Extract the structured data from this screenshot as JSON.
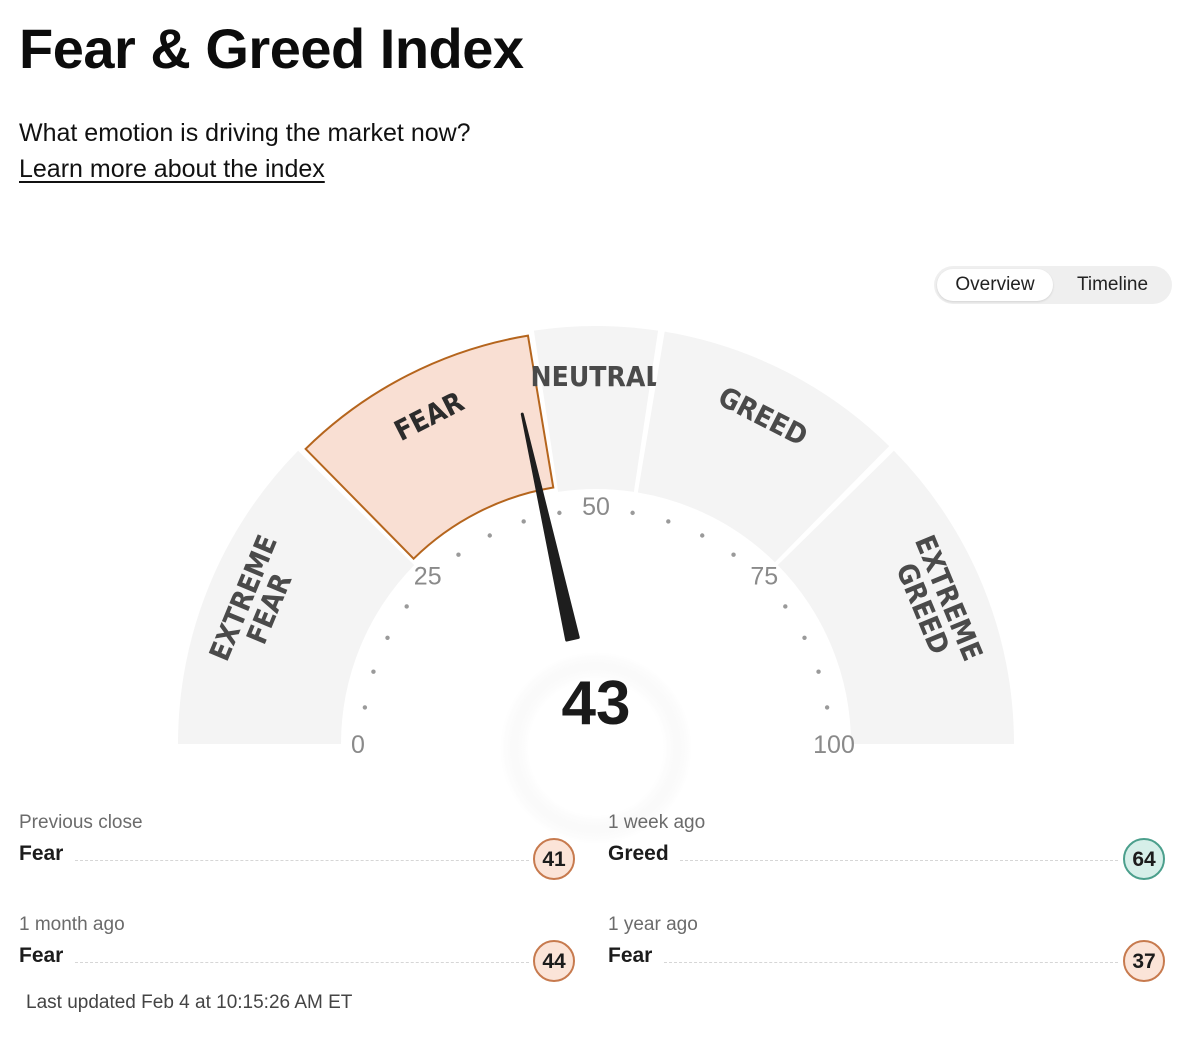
{
  "header": {
    "title": "Fear & Greed Index",
    "subtitle": "What emotion is driving the market now?",
    "learn_more": "Learn more about the index"
  },
  "view_toggle": {
    "options": [
      "Overview",
      "Timeline"
    ],
    "selected": "Overview"
  },
  "gauge": {
    "score": 43,
    "score_text": "43",
    "active_segment": "FEAR",
    "segments": [
      {
        "label_lines": [
          "EXTREME",
          "FEAR"
        ],
        "from": 0,
        "to": 25
      },
      {
        "label_lines": [
          "FEAR"
        ],
        "from": 25,
        "to": 45
      },
      {
        "label_lines": [
          "NEUTRAL"
        ],
        "from": 45,
        "to": 55
      },
      {
        "label_lines": [
          "GREED"
        ],
        "from": 55,
        "to": 75
      },
      {
        "label_lines": [
          "EXTREME",
          "GREED"
        ],
        "from": 75,
        "to": 100
      }
    ],
    "ticks": [
      "0",
      "25",
      "50",
      "75",
      "100"
    ],
    "colors": {
      "segment_fill": "#f4f4f4",
      "active_fill": "#f9dfd3",
      "active_stroke": "#b5651d",
      "needle": "#1e1e1e"
    }
  },
  "history": [
    {
      "period": "Previous close",
      "rating": "Fear",
      "value": "41",
      "tone": "fear"
    },
    {
      "period": "1 week ago",
      "rating": "Greed",
      "value": "64",
      "tone": "greed"
    },
    {
      "period": "1 month ago",
      "rating": "Fear",
      "value": "44",
      "tone": "fear"
    },
    {
      "period": "1 year ago",
      "rating": "Fear",
      "value": "37",
      "tone": "fear"
    }
  ],
  "badge_colors": {
    "fear": {
      "fill": "#fbe4d8",
      "border": "#c77a4e"
    },
    "greed": {
      "fill": "#d6efe9",
      "border": "#4b9f8c"
    }
  },
  "last_updated": "Last updated Feb 4 at 10:15:26 AM ET"
}
